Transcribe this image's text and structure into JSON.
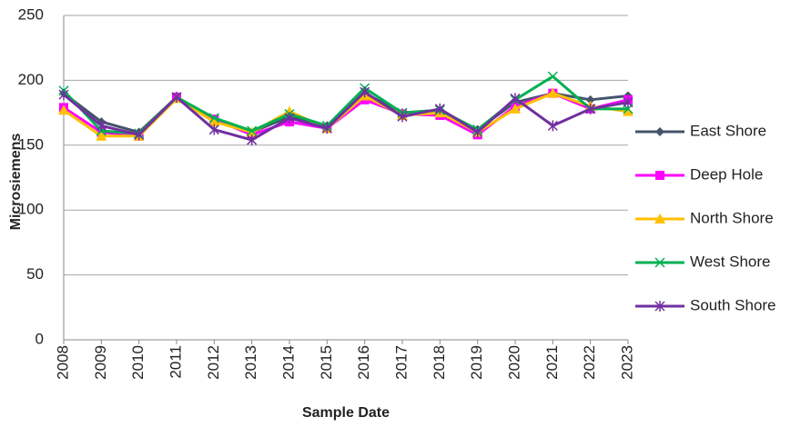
{
  "chart_data": {
    "type": "line",
    "ylabel": "Microsiemens",
    "xlabel": "Sample Date",
    "categories": [
      "2008",
      "2009",
      "2010",
      "2011",
      "2012",
      "2013",
      "2014",
      "2015",
      "2016",
      "2017",
      "2018",
      "2019",
      "2020",
      "2021",
      "2022",
      "2023"
    ],
    "series": [
      {
        "name": "East Shore",
        "color": "#44546a",
        "marker": "diamond",
        "values": [
          190,
          168,
          160,
          187,
          170,
          160,
          172,
          165,
          190,
          175,
          177,
          162,
          183,
          190,
          185,
          188
        ]
      },
      {
        "name": "Deep Hole",
        "color": "#ff00ff",
        "marker": "square",
        "values": [
          179,
          160,
          157,
          187,
          170,
          158,
          168,
          163,
          185,
          174,
          173,
          158,
          180,
          190,
          178,
          185
        ]
      },
      {
        "name": "North Shore",
        "color": "#ffc000",
        "marker": "triangle",
        "values": [
          177,
          157,
          157,
          186,
          168,
          160,
          176,
          163,
          188,
          173,
          175,
          160,
          178,
          190,
          180,
          176
        ]
      },
      {
        "name": "West Shore",
        "color": "#00b050",
        "marker": "x",
        "values": [
          192,
          161,
          159,
          187,
          171,
          161,
          174,
          165,
          194,
          175,
          177,
          162,
          185,
          203,
          178,
          178
        ]
      },
      {
        "name": "South Shore",
        "color": "#7030a0",
        "marker": "star",
        "values": [
          189,
          165,
          158,
          187,
          162,
          154,
          171,
          163,
          191,
          172,
          178,
          160,
          186,
          165,
          178,
          183
        ]
      }
    ],
    "ylim": [
      0,
      250
    ],
    "yticks": [
      0,
      50,
      100,
      150,
      200,
      250
    ],
    "grid": true,
    "legend": "right"
  }
}
